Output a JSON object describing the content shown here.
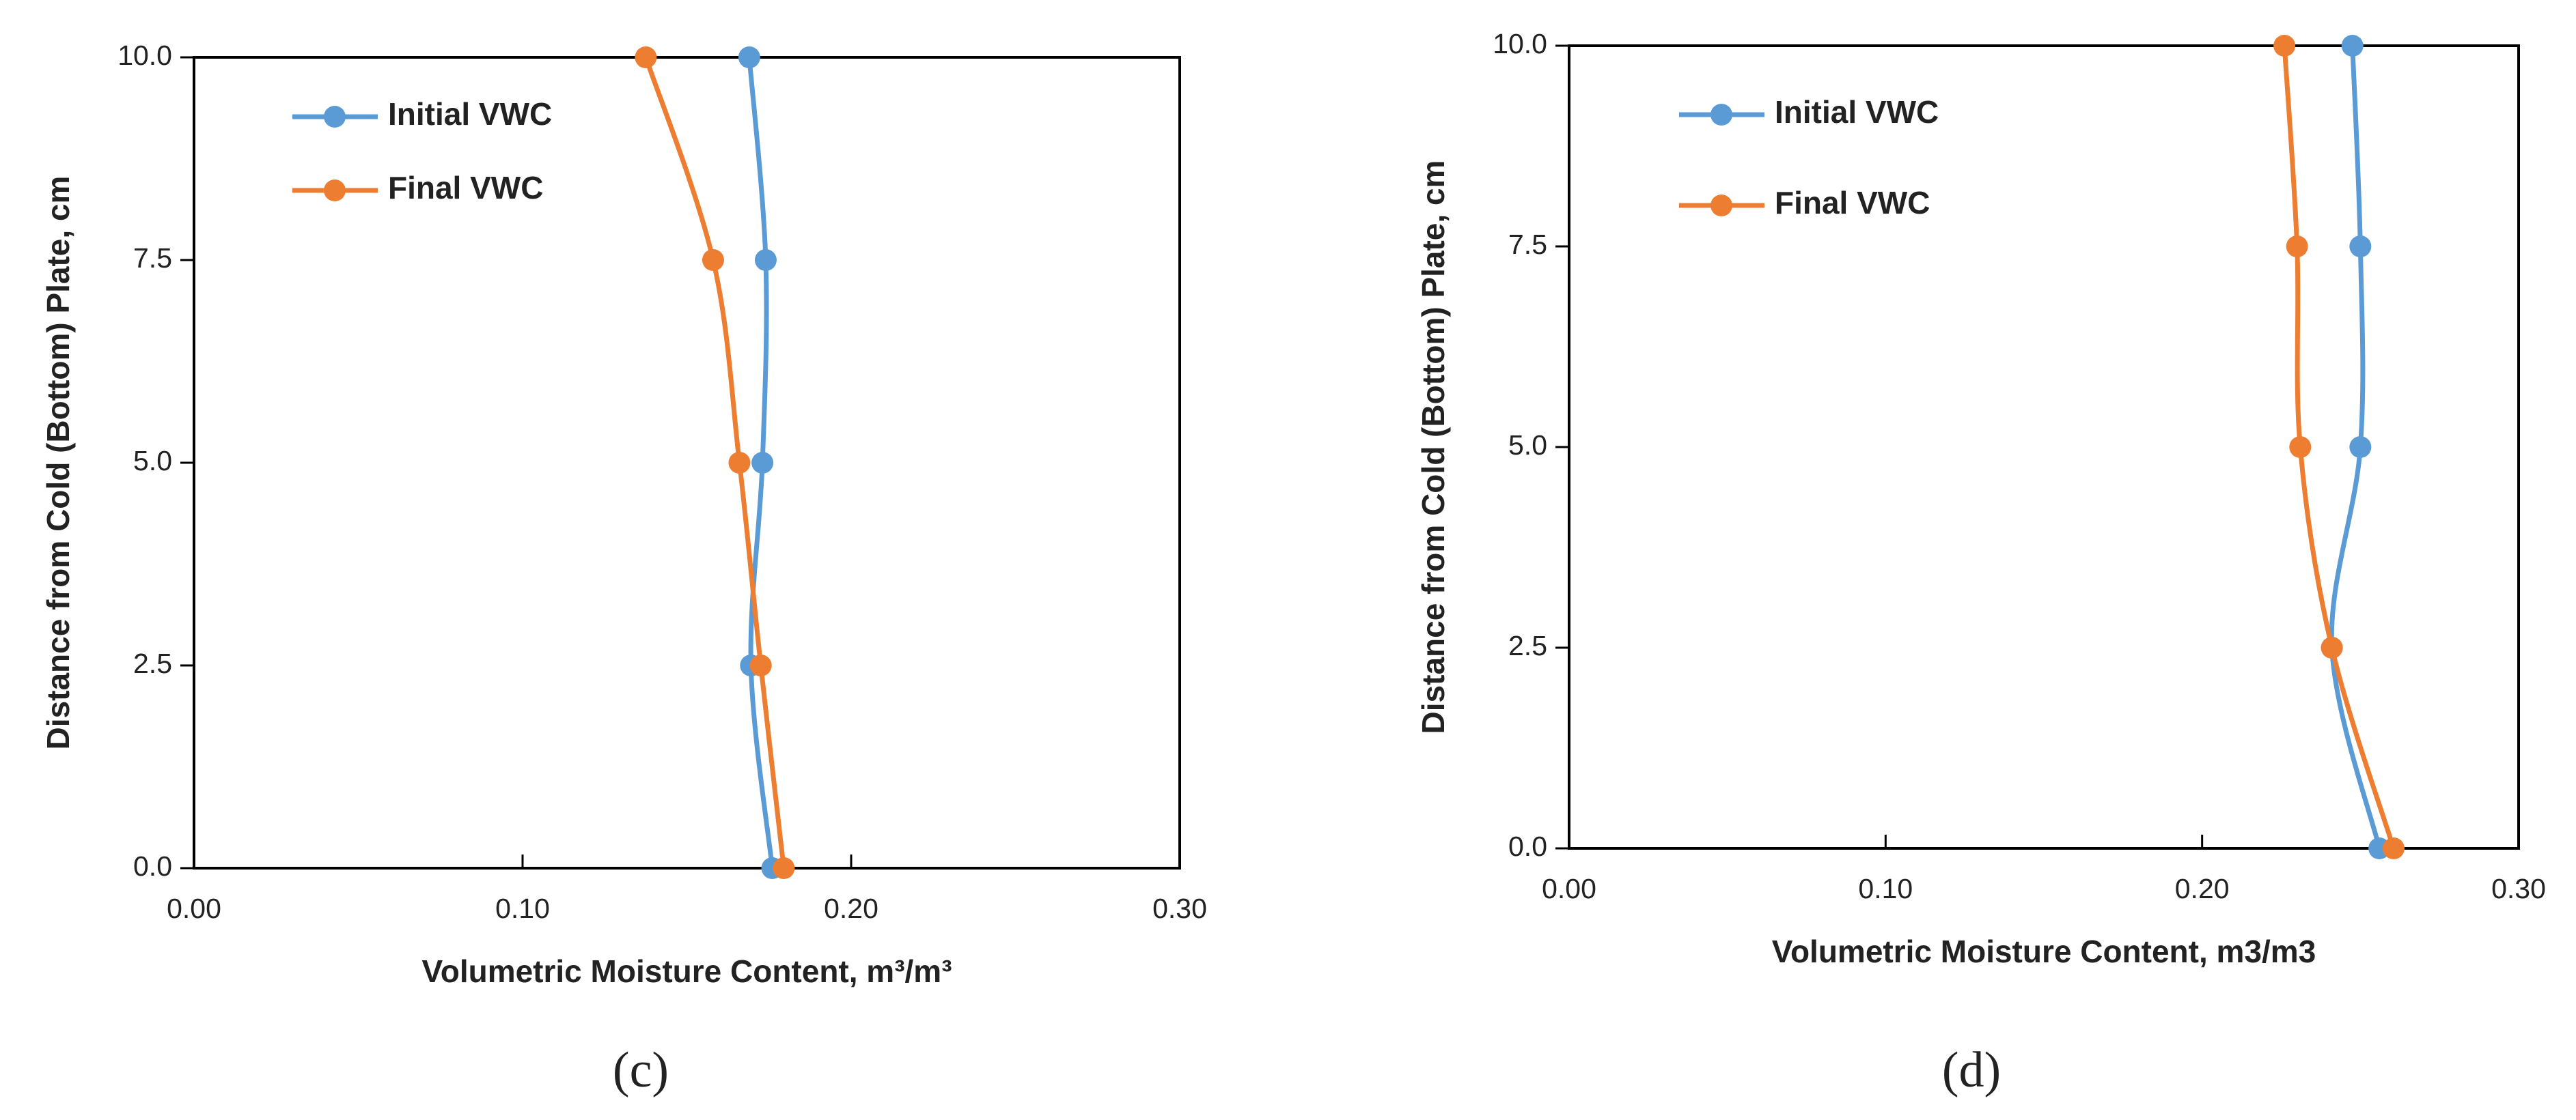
{
  "chart_data": [
    {
      "type": "line",
      "caption": "(c)",
      "xlabel": "Volumetric Moisture Content, m³/m³",
      "ylabel": "Distance from Cold (Bottom) Plate, cm",
      "xlim": [
        0,
        0.3
      ],
      "ylim": [
        0,
        10
      ],
      "xticks": [
        {
          "value": 0,
          "label": "0.00"
        },
        {
          "value": 0.1,
          "label": "0.10"
        },
        {
          "value": 0.2,
          "label": "0.20"
        },
        {
          "value": 0.3,
          "label": "0.30"
        }
      ],
      "yticks": [
        {
          "value": 0,
          "label": "0.0"
        },
        2.5,
        {
          "value": 5,
          "label": "5.0"
        },
        7.5,
        {
          "value": 10,
          "label": "10.0"
        }
      ],
      "series": [
        {
          "name": "Initial VWC",
          "color": "#5b9bd5",
          "x": [
            0.176,
            0.1695,
            0.173,
            0.174,
            0.169
          ],
          "values": [
            0,
            2.5,
            5,
            7.5,
            10
          ]
        },
        {
          "name": "Final VWC",
          "color": "#ed7d31",
          "x": [
            0.1795,
            0.1725,
            0.166,
            0.158,
            0.1375
          ],
          "values": [
            0,
            2.5,
            5,
            7.5,
            10
          ]
        }
      ]
    },
    {
      "type": "line",
      "caption": "(d)",
      "xlabel": "Volumetric Moisture Content, m3/m3",
      "ylabel": "Distance from Cold (Bottom) Plate, cm",
      "xlim": [
        0,
        0.3
      ],
      "ylim": [
        0,
        10
      ],
      "xticks": [
        {
          "value": 0,
          "label": "0.00"
        },
        {
          "value": 0.1,
          "label": "0.10"
        },
        {
          "value": 0.2,
          "label": "0.20"
        },
        {
          "value": 0.3,
          "label": "0.30"
        }
      ],
      "yticks": [
        {
          "value": 0,
          "label": "0.0"
        },
        2.5,
        {
          "value": 5,
          "label": "5.0"
        },
        7.5,
        {
          "value": 10,
          "label": "10.0"
        }
      ],
      "series": [
        {
          "name": "Initial VWC",
          "color": "#5b9bd5",
          "x": [
            0.256,
            0.241,
            0.25,
            0.25,
            0.2475
          ],
          "values": [
            0,
            2.5,
            5,
            7.5,
            10
          ]
        },
        {
          "name": "Final VWC",
          "color": "#ed7d31",
          "x": [
            0.2605,
            0.241,
            0.231,
            0.23,
            0.226
          ],
          "values": [
            0,
            2.5,
            5,
            7.5,
            10
          ]
        }
      ]
    }
  ]
}
